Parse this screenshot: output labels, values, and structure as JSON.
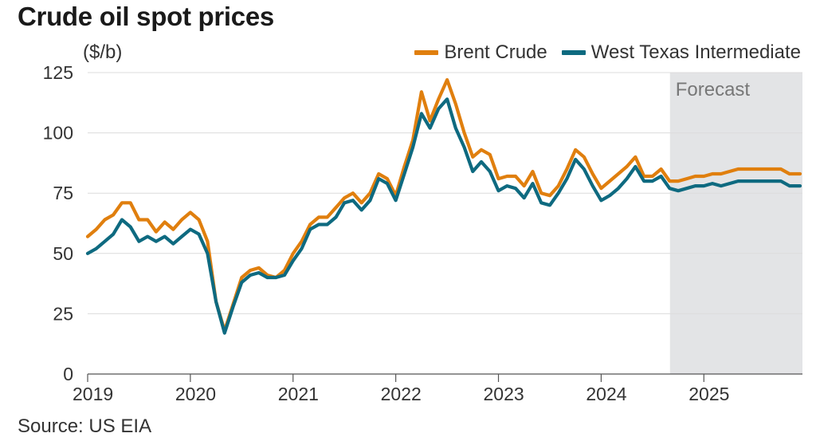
{
  "title": "Crude oil spot prices",
  "source": "Source: US EIA",
  "colors": {
    "brent": "#e07f0e",
    "wti": "#0e6a80",
    "forecast_shade": "#e3e4e6",
    "grid": "#dcdcdc",
    "axis": "#555555"
  },
  "chart_data": {
    "type": "line",
    "title": "Crude oil spot prices",
    "unit_label": "($/b)",
    "ylim": [
      0,
      125
    ],
    "yticks": [
      0,
      25,
      50,
      75,
      100,
      125
    ],
    "xlim": [
      2019.0,
      2025.96
    ],
    "xticks": [
      2019,
      2020,
      2021,
      2022,
      2023,
      2024,
      2025
    ],
    "xtick_labels": [
      "2019",
      "2020",
      "2021",
      "2022",
      "2023",
      "2024",
      "2025"
    ],
    "grid": true,
    "legend_position": "top-right",
    "shaded_region": {
      "label": "Forecast",
      "x_start": 2024.67,
      "x_end": 2025.96
    },
    "series": [
      {
        "name": "Brent Crude",
        "color": "#e07f0e",
        "start": 2019.0,
        "step": 0.0833333,
        "values": [
          57,
          60,
          64,
          66,
          71,
          71,
          64,
          64,
          59,
          63,
          60,
          64,
          67,
          64,
          55,
          30,
          18,
          29,
          40,
          43,
          44,
          41,
          40,
          43,
          50,
          55,
          62,
          65,
          65,
          69,
          73,
          75,
          71,
          75,
          83,
          81,
          74,
          86,
          97,
          117,
          105,
          114,
          122,
          112,
          100,
          90,
          93,
          91,
          81,
          82,
          82,
          78,
          84,
          75,
          74,
          78,
          85,
          93,
          90,
          83,
          77,
          80,
          83,
          86,
          90,
          82,
          82,
          85,
          80,
          80,
          81,
          82,
          82,
          83,
          83,
          84,
          85,
          85,
          85,
          85,
          85,
          85,
          83,
          83,
          83
        ]
      },
      {
        "name": "West Texas Intermediate",
        "color": "#0e6a80",
        "start": 2019.0,
        "step": 0.0833333,
        "values": [
          50,
          52,
          55,
          58,
          64,
          61,
          55,
          57,
          55,
          57,
          54,
          57,
          60,
          58,
          50,
          30,
          17,
          28,
          38,
          41,
          42,
          40,
          40,
          41,
          47,
          52,
          60,
          62,
          62,
          65,
          71,
          72,
          68,
          72,
          81,
          79,
          72,
          83,
          94,
          108,
          102,
          110,
          114,
          102,
          94,
          84,
          88,
          84,
          76,
          78,
          77,
          73,
          79,
          71,
          70,
          75,
          81,
          89,
          85,
          78,
          72,
          74,
          77,
          81,
          86,
          80,
          80,
          82,
          77,
          76,
          77,
          78,
          78,
          79,
          78,
          79,
          80,
          80,
          80,
          80,
          80,
          80,
          78,
          78,
          78
        ]
      }
    ]
  }
}
